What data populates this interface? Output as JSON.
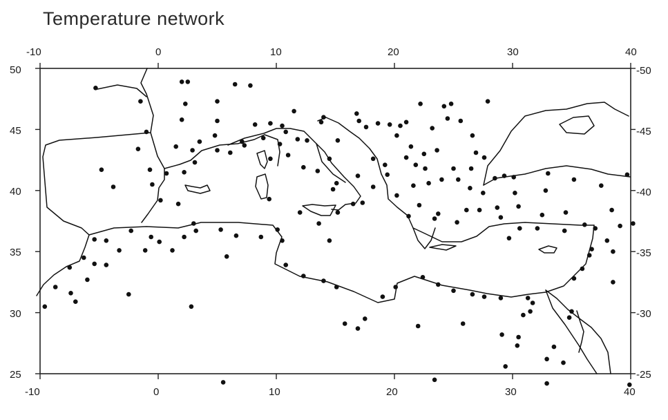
{
  "title": "Temperature network",
  "map": {
    "type": "station-network",
    "lon_range": [
      -10,
      40
    ],
    "lat_range": [
      25,
      50
    ],
    "lon_ticks": [
      "-10",
      "0",
      "10",
      "20",
      "30",
      "40"
    ],
    "lat_ticks_left": [
      "50",
      "45",
      "40",
      "35",
      "30",
      "25"
    ],
    "lat_ticks_right": [
      "-50",
      "-45",
      "-40",
      "-35",
      "-30",
      "-25"
    ],
    "grid": false,
    "colors": {
      "coastline": "#111111",
      "station": "#111111",
      "frame": "#222222"
    },
    "stations": [
      [
        -1.5,
        47.3
      ],
      [
        2,
        48.9
      ],
      [
        2.5,
        48.9
      ],
      [
        2.3,
        47.1
      ],
      [
        6.5,
        48.7
      ],
      [
        7.8,
        48.6
      ],
      [
        5,
        47.3
      ],
      [
        -1,
        44.8
      ],
      [
        -5.3,
        48.4
      ],
      [
        2,
        45.8
      ],
      [
        5,
        45.7
      ],
      [
        4.8,
        44.5
      ],
      [
        3.5,
        44
      ],
      [
        7.1,
        44
      ],
      [
        8.2,
        45.4
      ],
      [
        9.5,
        45.5
      ],
      [
        10.5,
        45.3
      ],
      [
        11.5,
        46.5
      ],
      [
        10.8,
        44.8
      ],
      [
        14,
        46
      ],
      [
        16.8,
        46.3
      ],
      [
        17,
        45.7
      ],
      [
        17.6,
        45.2
      ],
      [
        18.6,
        45.5
      ],
      [
        19.6,
        45.4
      ],
      [
        20.5,
        45.3
      ],
      [
        21,
        45.6
      ],
      [
        22.2,
        47.1
      ],
      [
        24.2,
        46.9
      ],
      [
        24.8,
        47.1
      ],
      [
        27.9,
        47.3
      ],
      [
        24.5,
        45.9
      ],
      [
        26.6,
        44.5
      ],
      [
        20.2,
        44.5
      ],
      [
        21.4,
        43.6
      ],
      [
        22.5,
        43
      ],
      [
        23.6,
        43.3
      ],
      [
        21.8,
        42.1
      ],
      [
        22.6,
        41.8
      ],
      [
        21.6,
        40.4
      ],
      [
        25,
        41.8
      ],
      [
        27.6,
        42.7
      ],
      [
        26.5,
        41.8
      ],
      [
        28.5,
        41
      ],
      [
        29.3,
        41.2
      ],
      [
        30.1,
        41.1
      ],
      [
        33,
        41.4
      ],
      [
        35.2,
        40.9
      ],
      [
        37.5,
        40.4
      ],
      [
        39.7,
        41.3
      ],
      [
        32.8,
        40
      ],
      [
        30.2,
        39.8
      ],
      [
        27.5,
        39.8
      ],
      [
        28.7,
        38.6
      ],
      [
        30.5,
        38.7
      ],
      [
        32.5,
        38
      ],
      [
        34.5,
        38.2
      ],
      [
        36.1,
        37.2
      ],
      [
        37,
        36.9
      ],
      [
        38.4,
        38.4
      ],
      [
        39.1,
        37.1
      ],
      [
        40.2,
        37.3
      ],
      [
        38,
        35.9
      ],
      [
        36.7,
        35.2
      ],
      [
        38.5,
        35
      ],
      [
        36.5,
        34.7
      ],
      [
        38.5,
        32.5
      ],
      [
        35.9,
        33.6
      ],
      [
        35.2,
        32.8
      ],
      [
        35,
        30.1
      ],
      [
        34.8,
        29.6
      ],
      [
        33.5,
        27.2
      ],
      [
        32.9,
        26.2
      ],
      [
        34.3,
        25.9
      ],
      [
        32.9,
        24.2
      ],
      [
        30.9,
        29.8
      ],
      [
        30.4,
        27.3
      ],
      [
        30.5,
        28
      ],
      [
        29.1,
        28.2
      ],
      [
        29.4,
        25.6
      ],
      [
        31.5,
        30.1
      ],
      [
        31.3,
        31.2
      ],
      [
        31.7,
        30.8
      ],
      [
        29,
        31.2
      ],
      [
        27.6,
        31.3
      ],
      [
        26.6,
        31.5
      ],
      [
        25,
        31.8
      ],
      [
        23.7,
        32.3
      ],
      [
        22.4,
        32.9
      ],
      [
        20.1,
        32.1
      ],
      [
        19,
        31.3
      ],
      [
        17.5,
        29.5
      ],
      [
        15.1,
        32.1
      ],
      [
        14,
        32.6
      ],
      [
        12.3,
        33
      ],
      [
        10.8,
        33.9
      ],
      [
        10.5,
        35.9
      ],
      [
        10.1,
        36.8
      ],
      [
        8.7,
        36.2
      ],
      [
        6.6,
        36.3
      ],
      [
        5.3,
        36.8
      ],
      [
        3.2,
        36.7
      ],
      [
        2.2,
        36.2
      ],
      [
        0.1,
        35.8
      ],
      [
        -0.6,
        36.2
      ],
      [
        -1.1,
        35.1
      ],
      [
        -3.3,
        35.1
      ],
      [
        -4.4,
        35.9
      ],
      [
        -5.4,
        36
      ],
      [
        -6.3,
        34.5
      ],
      [
        -5.4,
        34
      ],
      [
        -4.4,
        33.9
      ],
      [
        -6,
        32.7
      ],
      [
        -7.5,
        33.7
      ],
      [
        -8.7,
        32.1
      ],
      [
        -9.6,
        30.5
      ],
      [
        -7.4,
        31.6
      ],
      [
        -7,
        30.9
      ],
      [
        -2.5,
        31.5
      ],
      [
        2.8,
        30.5
      ],
      [
        5.8,
        34.6
      ],
      [
        1.2,
        35.1
      ],
      [
        -2.3,
        36.7
      ],
      [
        3,
        37.3
      ],
      [
        1.7,
        38.9
      ],
      [
        0.2,
        39.2
      ],
      [
        -0.5,
        40.5
      ],
      [
        -3.8,
        40.3
      ],
      [
        -4.8,
        41.7
      ],
      [
        -0.7,
        41.7
      ],
      [
        0.7,
        41.4
      ],
      [
        2.2,
        41.5
      ],
      [
        3.1,
        42.3
      ],
      [
        5,
        43.3
      ],
      [
        6.1,
        43.1
      ],
      [
        7.3,
        43.7
      ],
      [
        8.9,
        44.3
      ],
      [
        9.4,
        39.3
      ],
      [
        12.3,
        41.9
      ],
      [
        13.5,
        41.6
      ],
      [
        15.1,
        40.6
      ],
      [
        14.5,
        35.9
      ],
      [
        15.2,
        38.2
      ],
      [
        16.9,
        41.2
      ],
      [
        18.2,
        40.3
      ],
      [
        17.3,
        39
      ],
      [
        19.4,
        41.3
      ],
      [
        20.2,
        39.6
      ],
      [
        21.2,
        37.9
      ],
      [
        22.1,
        38.8
      ],
      [
        23.7,
        38.1
      ],
      [
        23.4,
        37.7
      ],
      [
        25.3,
        37.4
      ],
      [
        26.1,
        38.4
      ],
      [
        27.2,
        38.4
      ],
      [
        24,
        40.9
      ],
      [
        26.4,
        40.2
      ],
      [
        29,
        37.8
      ],
      [
        30.6,
        36.9
      ],
      [
        32.1,
        36.9
      ],
      [
        34.4,
        36.7
      ],
      [
        29.7,
        36.1
      ],
      [
        13.6,
        37.3
      ],
      [
        12,
        38.2
      ],
      [
        16.5,
        38.9
      ],
      [
        11,
        42.9
      ],
      [
        9.5,
        42.6
      ],
      [
        10.3,
        43.8
      ],
      [
        12.6,
        44.1
      ],
      [
        13.8,
        45.6
      ],
      [
        15.2,
        44.1
      ],
      [
        14.5,
        42.6
      ],
      [
        22.9,
        40.6
      ],
      [
        25.4,
        40.9
      ],
      [
        18.2,
        42.6
      ],
      [
        19.2,
        42.1
      ],
      [
        21,
        42.7
      ],
      [
        26.9,
        43.1
      ],
      [
        23.2,
        45.1
      ],
      [
        25.6,
        45.7
      ],
      [
        2.9,
        43.3
      ],
      [
        1.5,
        43.6
      ],
      [
        -1.7,
        43.4
      ],
      [
        11.8,
        44.2
      ],
      [
        14.8,
        40.1
      ],
      [
        23.4,
        24.5
      ],
      [
        5.5,
        24.3
      ],
      [
        39.9,
        24.1
      ],
      [
        22,
        28.9
      ],
      [
        25.8,
        29.1
      ],
      [
        15.8,
        29.1
      ],
      [
        16.9,
        28.7
      ]
    ]
  }
}
